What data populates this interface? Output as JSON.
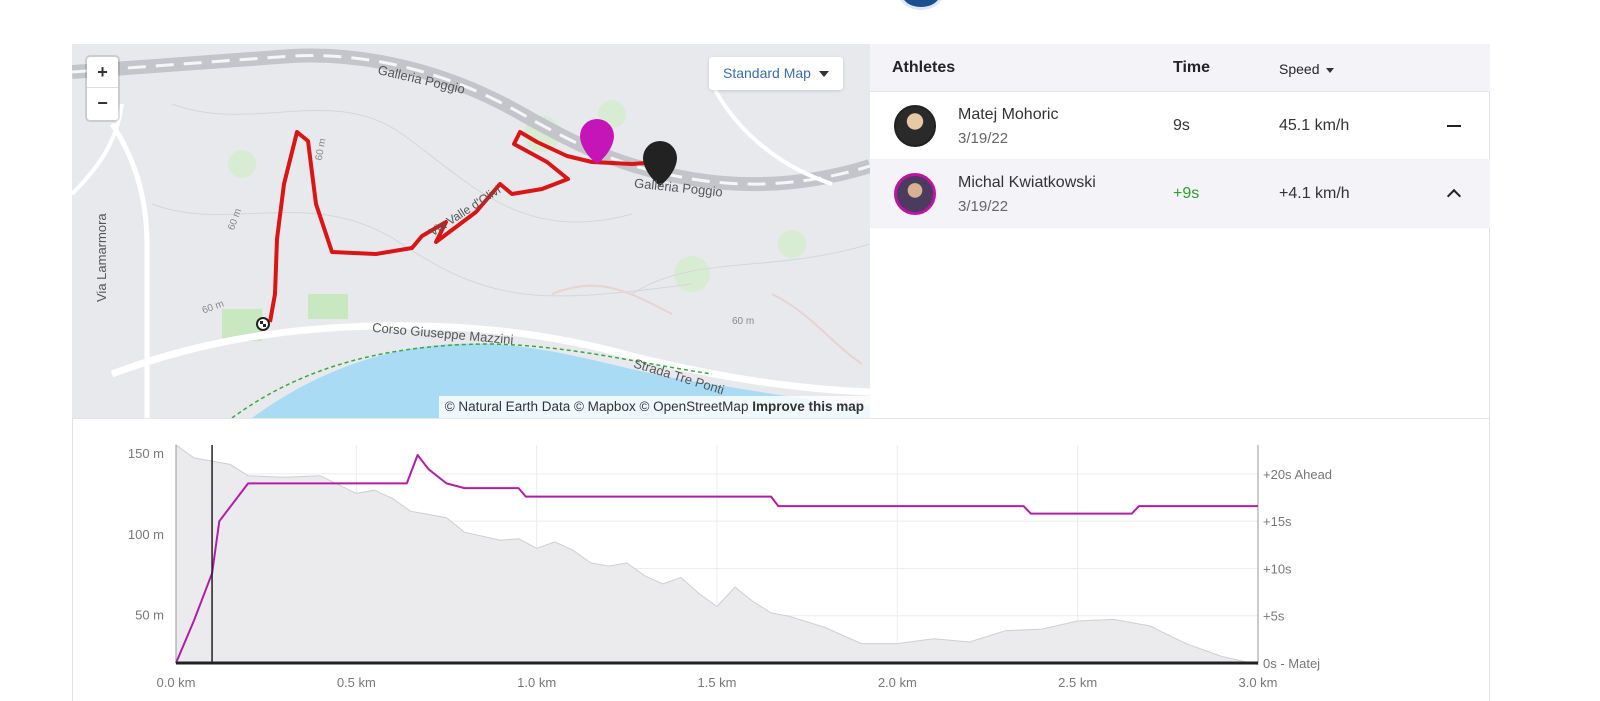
{
  "map": {
    "zoom_in": "+",
    "zoom_out": "−",
    "style_label": "Standard Map",
    "attribution": "© Natural Earth Data © Mapbox © OpenStreetMap",
    "improve_link": "Improve this map",
    "labels": {
      "galleria_top": "Galleria Poggio",
      "galleria_bottom": "Galleria Poggio",
      "via_lamarmora": "Via Lamarmora",
      "corso": "Corso Giuseppe Mazzini",
      "strada": "Strada Tre Ponti",
      "via_olivi": "Via Valle d'Olivi"
    },
    "contours": [
      "60 m",
      "60 m",
      "60 m",
      "60 m"
    ],
    "colors": {
      "route": "#d91515",
      "athlete_marker": "#c514b7",
      "leader_marker": "#222222",
      "sea": "#a9dbf4",
      "park": "#c9e7c1"
    }
  },
  "table": {
    "headers": {
      "athletes": "Athletes",
      "time": "Time",
      "speed": "Speed"
    },
    "rows": [
      {
        "name": "Matej Mohoric",
        "date": "3/19/22",
        "time": "9s",
        "speed": "45.1 km/h",
        "toggle": "collapse"
      },
      {
        "name": "Michal Kwiatkowski",
        "date": "3/19/22",
        "time": "+9s",
        "speed": "+4.1 km/h",
        "toggle": "expand-up"
      }
    ]
  },
  "chart_data": {
    "type": "area",
    "x_axis": {
      "ticks": [
        "0.0 km",
        "0.5 km",
        "1.0 km",
        "1.5 km",
        "2.0 km",
        "2.5 km",
        "3.0 km"
      ],
      "range": [
        0,
        3.0
      ]
    },
    "y_left": {
      "ticks": [
        "150 m",
        "100 m",
        "50 m"
      ],
      "range": [
        20,
        155
      ]
    },
    "y_right": {
      "ticks": [
        "+20s Ahead",
        "+15s",
        "+10s",
        "+5s",
        "0s - Matej"
      ],
      "range": [
        0,
        22
      ]
    },
    "elevation": {
      "x": [
        0,
        0.05,
        0.1,
        0.15,
        0.2,
        0.3,
        0.4,
        0.5,
        0.55,
        0.6,
        0.65,
        0.7,
        0.75,
        0.8,
        0.9,
        0.95,
        1.0,
        1.05,
        1.1,
        1.15,
        1.2,
        1.25,
        1.3,
        1.35,
        1.4,
        1.45,
        1.5,
        1.55,
        1.6,
        1.65,
        1.7,
        1.8,
        1.9,
        2.0,
        2.1,
        2.2,
        2.3,
        2.4,
        2.5,
        2.6,
        2.7,
        2.8,
        2.9,
        3.0
      ],
      "y": [
        155,
        147,
        145,
        143,
        136,
        135,
        136,
        125,
        127,
        122,
        114,
        112,
        110,
        101,
        96,
        97,
        91,
        95,
        90,
        82,
        80,
        82,
        74,
        69,
        73,
        63,
        55,
        67,
        58,
        51,
        49,
        42,
        32,
        32,
        35,
        33,
        40,
        41,
        46,
        47,
        43,
        32,
        24,
        19
      ]
    },
    "series": [
      {
        "name": "Michal Kwiatkowski",
        "color": "#b01ea8",
        "x": [
          0,
          0.05,
          0.1,
          0.12,
          0.2,
          0.3,
          0.5,
          0.64,
          0.67,
          0.7,
          0.75,
          0.8,
          0.95,
          0.97,
          1.1,
          1.5,
          1.65,
          1.67,
          2.0,
          2.35,
          2.37,
          2.65,
          2.67,
          3.0
        ],
        "y": [
          0,
          4.5,
          9.5,
          15,
          19,
          19,
          19,
          19,
          22,
          20.5,
          19,
          18.5,
          18.5,
          17.6,
          17.6,
          17.6,
          17.6,
          16.6,
          16.6,
          16.6,
          15.8,
          15.8,
          16.6,
          16.6
        ]
      },
      {
        "name": "Matej Mohoric",
        "color": "#222222",
        "x": [
          0,
          3.0
        ],
        "y": [
          0,
          0
        ]
      }
    ],
    "cursor_x": 0.1
  }
}
